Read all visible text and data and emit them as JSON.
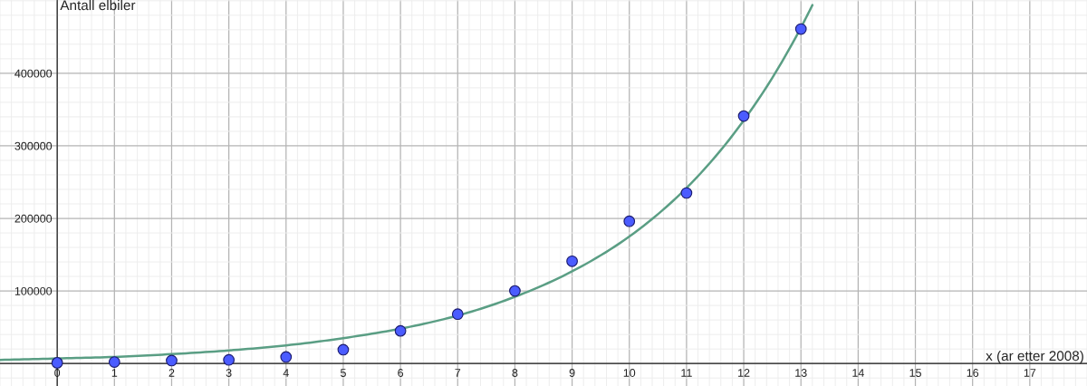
{
  "chart_data": {
    "type": "scatter",
    "xlabel": "x (ar etter 2008)",
    "ylabel": "Antall elbiler",
    "xlim": [
      -1,
      18
    ],
    "ylim": [
      -31000,
      501000
    ],
    "xticks": [
      0,
      1,
      2,
      3,
      4,
      5,
      6,
      7,
      8,
      9,
      10,
      11,
      12,
      13,
      14,
      15,
      16,
      17
    ],
    "yticks": [
      100000,
      200000,
      300000,
      400000
    ],
    "grid": true,
    "series": [
      {
        "type": "line",
        "color": "#5a9e84",
        "x": [
          -1,
          0,
          1,
          2,
          3,
          4,
          5,
          6,
          7,
          8,
          9,
          10,
          11,
          12,
          13,
          13.2
        ],
        "values": [
          5000,
          7000,
          9000,
          13000,
          18000,
          25000,
          35000,
          48000,
          66000,
          92000,
          127000,
          175000,
          242000,
          335000,
          463000,
          494000
        ]
      },
      {
        "marker": "circle",
        "color": "#4b5cff",
        "x": [
          0,
          1,
          2,
          3,
          4,
          5,
          6,
          7,
          8,
          9,
          10,
          11,
          12,
          13
        ],
        "values": [
          1000,
          2000,
          4000,
          5000,
          9000,
          19000,
          45000,
          68000,
          100000,
          141000,
          196000,
          235000,
          341000,
          461000
        ]
      }
    ]
  }
}
